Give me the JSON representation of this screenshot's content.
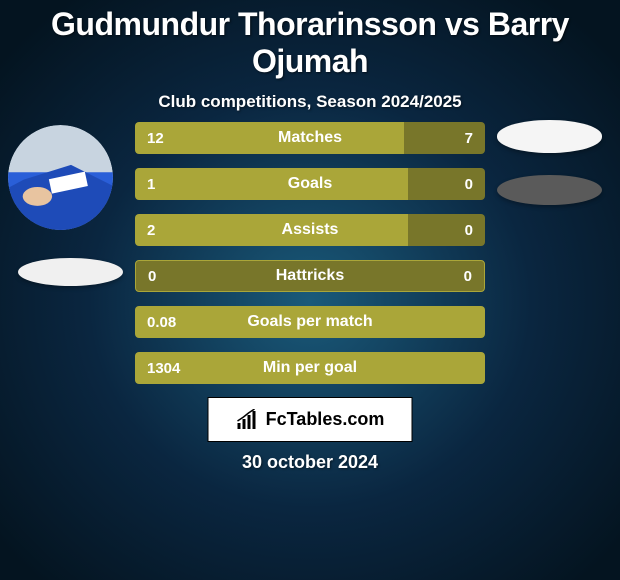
{
  "background": {
    "base_color": "#0a2640",
    "spotlight_color": "#1a5a7a",
    "vignette_color": "#041420"
  },
  "title": "Gudmundur Thorarinsson vs Barry Ojumah",
  "title_color": "#ffffff",
  "subtitle": "Club competitions, Season 2024/2025",
  "subtitle_color": "#ffffff",
  "bars": {
    "bar_color_primary": "#aaa639",
    "bar_color_secondary": "#78762a",
    "track_width": 350,
    "label_color": "#ffffff",
    "value_color": "#ffffff",
    "rows": [
      {
        "label": "Matches",
        "left_val": "12",
        "right_val": "7",
        "left_pct": 0.77,
        "right_pct": 0.23
      },
      {
        "label": "Goals",
        "left_val": "1",
        "right_val": "0",
        "left_pct": 0.78,
        "right_pct": 0.22
      },
      {
        "label": "Assists",
        "left_val": "2",
        "right_val": "0",
        "left_pct": 0.78,
        "right_pct": 0.22
      },
      {
        "label": "Hattricks",
        "left_val": "0",
        "right_val": "0",
        "left_pct": 0.0,
        "right_pct": 0.0
      },
      {
        "label": "Goals per match",
        "left_val": "0.08",
        "right_val": "",
        "left_pct": 1.0,
        "right_pct": 0.0
      },
      {
        "label": "Min per goal",
        "left_val": "1304",
        "right_val": "",
        "left_pct": 1.0,
        "right_pct": 0.0
      }
    ]
  },
  "logo_text": "FcTables.com",
  "date": "30 october 2024",
  "date_color": "#ffffff"
}
